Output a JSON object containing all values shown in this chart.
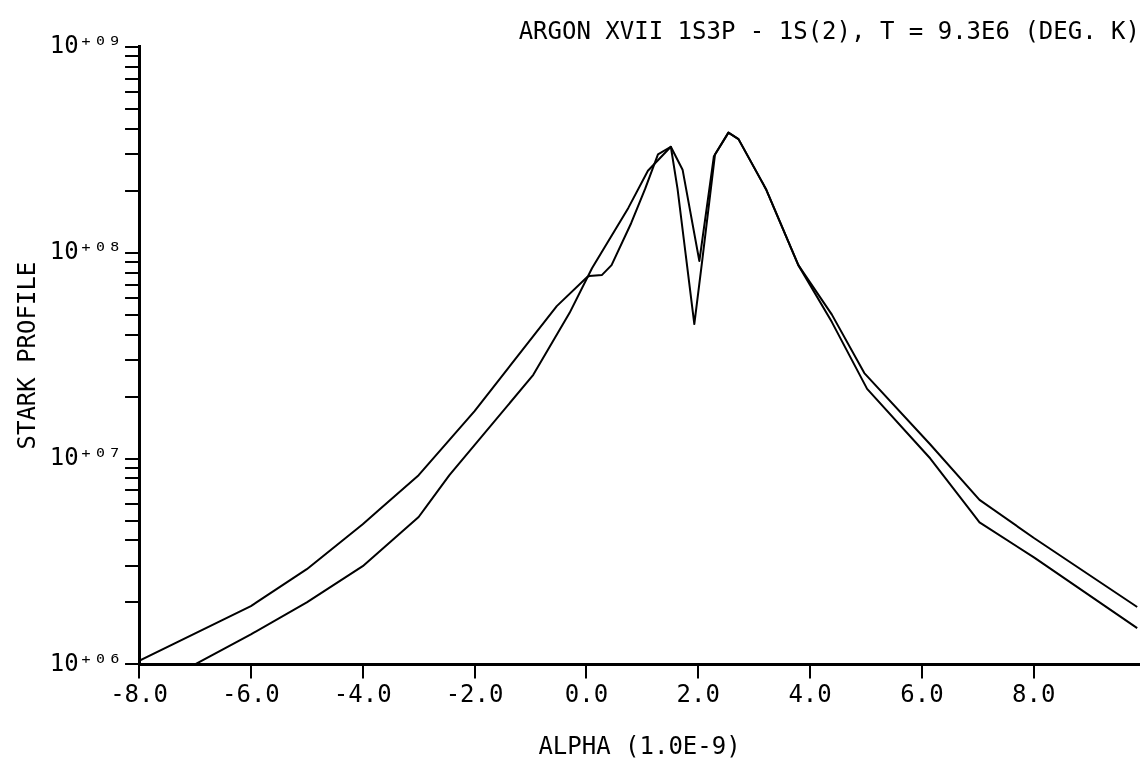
{
  "chart_data": {
    "type": "line",
    "title": "ARGON XVII 1S3P - 1S(2), T = 9.3E6 (DEG. K)",
    "xlabel": "ALPHA (1.0E-9)",
    "ylabel": "STARK PROFILE",
    "log": "y",
    "grid": false,
    "legend": false,
    "marker": "none",
    "line_style": "solid",
    "xlim": [
      -8,
      9.9
    ],
    "ylim": [
      1000000,
      1000000000
    ],
    "xticks": [
      {
        "value": -8,
        "label": "-8.0"
      },
      {
        "value": -6,
        "label": "-6.0"
      },
      {
        "value": -4,
        "label": "-4.0"
      },
      {
        "value": -2,
        "label": "-2.0"
      },
      {
        "value": 0,
        "label": "0.0"
      },
      {
        "value": 2,
        "label": "2.0"
      },
      {
        "value": 4,
        "label": "4.0"
      },
      {
        "value": 6,
        "label": "6.0"
      },
      {
        "value": 8,
        "label": "8.0"
      }
    ],
    "yticks": [
      {
        "value": 1000000,
        "label": "10⁺⁰⁶"
      },
      {
        "value": 2000000,
        "label": null
      },
      {
        "value": 3000000,
        "label": null
      },
      {
        "value": 4000000,
        "label": null
      },
      {
        "value": 5000000,
        "label": null
      },
      {
        "value": 6000000,
        "label": null
      },
      {
        "value": 7000000,
        "label": null
      },
      {
        "value": 8000000,
        "label": null
      },
      {
        "value": 9000000,
        "label": null
      },
      {
        "value": 10000000,
        "label": "10⁺⁰⁷"
      },
      {
        "value": 20000000,
        "label": null
      },
      {
        "value": 30000000,
        "label": null
      },
      {
        "value": 40000000,
        "label": null
      },
      {
        "value": 50000000,
        "label": null
      },
      {
        "value": 60000000,
        "label": null
      },
      {
        "value": 70000000,
        "label": null
      },
      {
        "value": 80000000,
        "label": null
      },
      {
        "value": 90000000,
        "label": null
      },
      {
        "value": 100000000,
        "label": "10⁺⁰⁸"
      },
      {
        "value": 200000000,
        "label": null
      },
      {
        "value": 300000000,
        "label": null
      },
      {
        "value": 400000000,
        "label": null
      },
      {
        "value": 500000000,
        "label": null
      },
      {
        "value": 600000000,
        "label": null
      },
      {
        "value": 700000000,
        "label": null
      },
      {
        "value": 800000000,
        "label": null
      },
      {
        "value": 900000000,
        "label": null
      },
      {
        "value": 1000000000,
        "label": "10⁺⁰⁹"
      }
    ],
    "series": [
      {
        "color": "#000000",
        "x": [
          -8,
          -6,
          -5,
          -4,
          -3,
          -2,
          -0.53,
          0.01,
          0.05,
          0.28,
          0.45,
          0.8,
          1.05,
          1.28,
          1.51,
          1.72,
          2.02,
          2.28,
          2.54,
          2.72,
          3.21,
          3.79,
          4.39,
          4.97,
          6.15,
          7.03,
          8.01,
          9.85
        ],
        "values": [
          1040000,
          1920000,
          2900000,
          4800000,
          8300000,
          17000000,
          55000000,
          76000000,
          77000000,
          78000000,
          87000000,
          139000000,
          204000000,
          300000000,
          327000000,
          253000000,
          91000000,
          294000000,
          383000000,
          356000000,
          204000000,
          87000000,
          50000000,
          26000000,
          11700000,
          6300000,
          4100000,
          1900000
        ]
      },
      {
        "color": "#000000",
        "x": [
          -7,
          -6,
          -5,
          -4,
          -3,
          -2.45,
          -0.95,
          -0.3,
          0.1,
          0.75,
          1.1,
          1.51,
          1.63,
          1.93,
          2.07,
          2.3,
          2.54,
          2.72,
          3.21,
          3.79,
          4.39,
          5.02,
          6.15,
          7.03,
          8.01,
          9.85
        ],
        "values": [
          1000000,
          1400000,
          2000000,
          3000000,
          5200000,
          8300000,
          25500000,
          51000000,
          84000000,
          165000000,
          250000000,
          327000000,
          204000000,
          45000000,
          91000000,
          300000000,
          383000000,
          356000000,
          204000000,
          87000000,
          46000000,
          21800000,
          10000000,
          4900000,
          3300000,
          1500000
        ]
      }
    ]
  }
}
